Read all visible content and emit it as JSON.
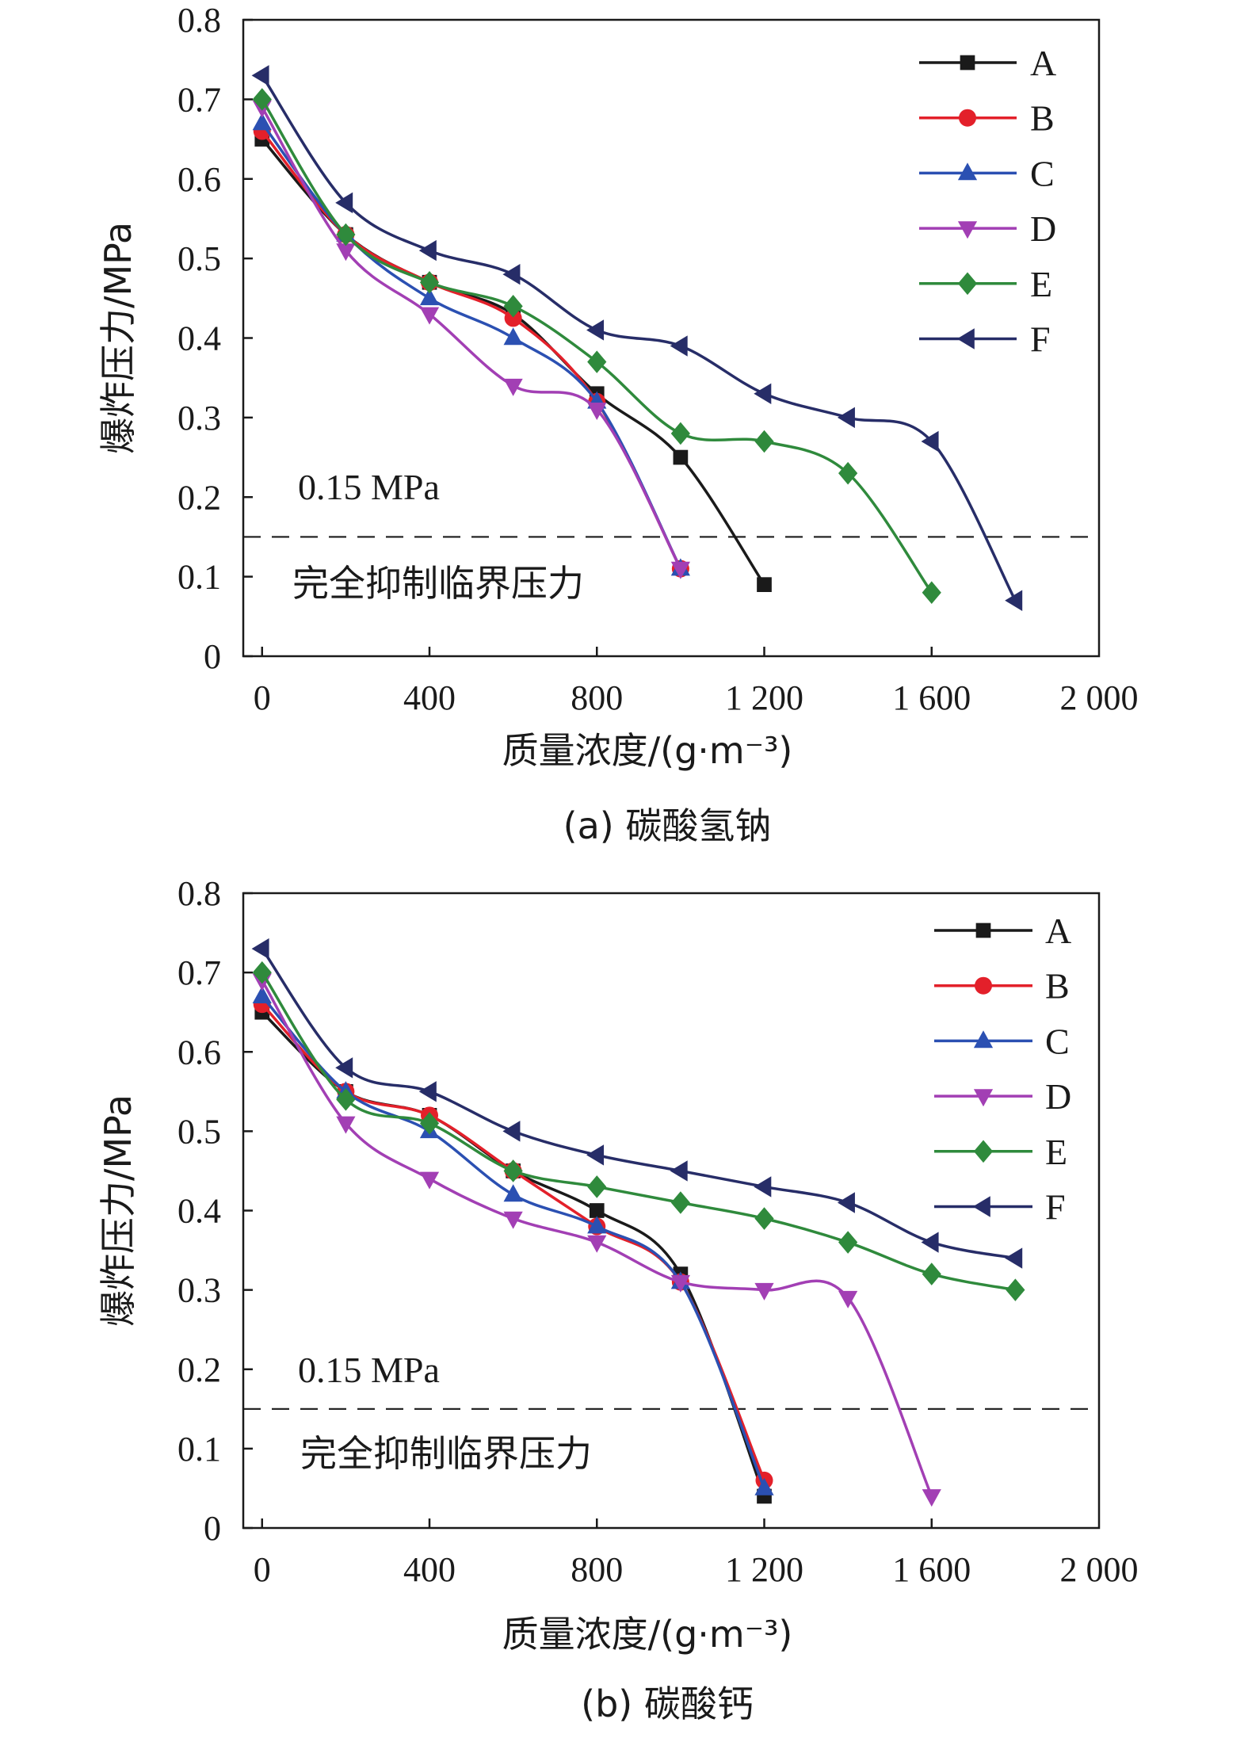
{
  "chart_data": [
    {
      "type": "line",
      "caption": "(a) 碳酸氢钠",
      "xlabel": "质量浓度/(g·m⁻³)",
      "ylabel": "爆炸压力/MPa",
      "xlim": [
        -45,
        2000
      ],
      "ylim": [
        0,
        0.8
      ],
      "xticks": [
        0,
        400,
        800,
        1200,
        1600,
        2000
      ],
      "xtick_labels": [
        "0",
        "400",
        "800",
        "1 200",
        "1 600",
        "2 000"
      ],
      "yticks": [
        0,
        0.1,
        0.2,
        0.3,
        0.4,
        0.5,
        0.6,
        0.7,
        0.8
      ],
      "ytick_labels": [
        "0",
        "0.1",
        "0.2",
        "0.3",
        "0.4",
        "0.5",
        "0.6",
        "0.7",
        "0.8"
      ],
      "legend_position": "top-right",
      "reference_line": {
        "y": 0.15,
        "label": "0.15 MPa",
        "note": "完全抑制临界压力"
      },
      "series": [
        {
          "name": "A",
          "color": "#1a1a1a",
          "marker": "square",
          "x": [
            0,
            200,
            400,
            600,
            800,
            1000,
            1200
          ],
          "y": [
            0.65,
            0.53,
            0.47,
            0.43,
            0.33,
            0.25,
            0.09
          ]
        },
        {
          "name": "B",
          "color": "#e3202a",
          "marker": "circle",
          "x": [
            0,
            200,
            400,
            600,
            800,
            1000
          ],
          "y": [
            0.66,
            0.53,
            0.47,
            0.425,
            0.32,
            0.11
          ]
        },
        {
          "name": "C",
          "color": "#2b50b2",
          "marker": "triangle-up",
          "x": [
            0,
            200,
            400,
            600,
            800,
            1000
          ],
          "y": [
            0.67,
            0.53,
            0.45,
            0.4,
            0.32,
            0.11
          ]
        },
        {
          "name": "D",
          "color": "#a23fb4",
          "marker": "triangle-down",
          "x": [
            0,
            200,
            400,
            600,
            800,
            1000
          ],
          "y": [
            0.69,
            0.51,
            0.43,
            0.34,
            0.31,
            0.11
          ]
        },
        {
          "name": "E",
          "color": "#2f8a3c",
          "marker": "diamond",
          "x": [
            0,
            200,
            400,
            600,
            800,
            1000,
            1200,
            1400,
            1600
          ],
          "y": [
            0.7,
            0.53,
            0.47,
            0.44,
            0.37,
            0.28,
            0.27,
            0.23,
            0.08
          ]
        },
        {
          "name": "F",
          "color": "#272d68",
          "marker": "triangle-left",
          "x": [
            0,
            200,
            400,
            600,
            800,
            1000,
            1200,
            1400,
            1600,
            1800
          ],
          "y": [
            0.73,
            0.57,
            0.51,
            0.48,
            0.41,
            0.39,
            0.33,
            0.3,
            0.27,
            0.07
          ]
        }
      ]
    },
    {
      "type": "line",
      "caption": "(b) 碳酸钙",
      "xlabel": "质量浓度/(g·m⁻³)",
      "ylabel": "爆炸压力/MPa",
      "xlim": [
        -45,
        2000
      ],
      "ylim": [
        0,
        0.8
      ],
      "xticks": [
        0,
        400,
        800,
        1200,
        1600,
        2000
      ],
      "xtick_labels": [
        "0",
        "400",
        "800",
        "1 200",
        "1 600",
        "2 000"
      ],
      "yticks": [
        0,
        0.1,
        0.2,
        0.3,
        0.4,
        0.5,
        0.6,
        0.7,
        0.8
      ],
      "ytick_labels": [
        "0",
        "0.1",
        "0.2",
        "0.3",
        "0.4",
        "0.5",
        "0.6",
        "0.7",
        "0.8"
      ],
      "legend_position": "top-right",
      "reference_line": {
        "y": 0.15,
        "label": "0.15 MPa",
        "note": "完全抑制临界压力"
      },
      "series": [
        {
          "name": "A",
          "color": "#1a1a1a",
          "marker": "square",
          "x": [
            0,
            200,
            400,
            600,
            800,
            1000,
            1200
          ],
          "y": [
            0.65,
            0.55,
            0.52,
            0.45,
            0.4,
            0.32,
            0.04
          ]
        },
        {
          "name": "B",
          "color": "#e3202a",
          "marker": "circle",
          "x": [
            0,
            200,
            400,
            600,
            800,
            1000,
            1200
          ],
          "y": [
            0.66,
            0.55,
            0.52,
            0.45,
            0.38,
            0.31,
            0.06
          ]
        },
        {
          "name": "C",
          "color": "#2b50b2",
          "marker": "triangle-up",
          "x": [
            0,
            200,
            400,
            600,
            800,
            1000,
            1200
          ],
          "y": [
            0.67,
            0.55,
            0.5,
            0.42,
            0.38,
            0.31,
            0.05
          ]
        },
        {
          "name": "D",
          "color": "#a23fb4",
          "marker": "triangle-down",
          "x": [
            0,
            200,
            400,
            600,
            800,
            1000,
            1200,
            1400,
            1600
          ],
          "y": [
            0.69,
            0.51,
            0.44,
            0.39,
            0.36,
            0.31,
            0.3,
            0.29,
            0.04
          ]
        },
        {
          "name": "E",
          "color": "#2f8a3c",
          "marker": "diamond",
          "x": [
            0,
            200,
            400,
            600,
            800,
            1000,
            1200,
            1400,
            1600,
            1800
          ],
          "y": [
            0.7,
            0.54,
            0.51,
            0.45,
            0.43,
            0.41,
            0.39,
            0.36,
            0.32,
            0.3
          ]
        },
        {
          "name": "F",
          "color": "#272d68",
          "marker": "triangle-left",
          "x": [
            0,
            200,
            400,
            600,
            800,
            1000,
            1200,
            1400,
            1600,
            1800
          ],
          "y": [
            0.73,
            0.58,
            0.55,
            0.5,
            0.47,
            0.45,
            0.43,
            0.41,
            0.36,
            0.34
          ]
        }
      ]
    }
  ]
}
